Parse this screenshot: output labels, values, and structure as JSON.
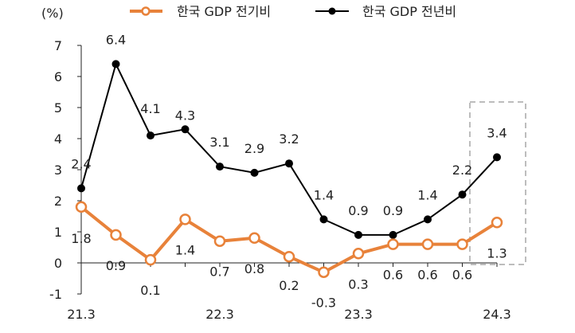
{
  "chart_data": {
    "type": "line",
    "unit_label": "(%)",
    "x": [
      "21.3",
      "",
      "",
      "",
      "22.3",
      "",
      "",
      "",
      "23.3",
      "",
      "",
      "",
      "24.3"
    ],
    "xtick_labels": [
      "21.3",
      "22.3",
      "23.3",
      "24.3"
    ],
    "ylim": [
      -1,
      7
    ],
    "yticks": [
      -1,
      0,
      1,
      2,
      3,
      4,
      5,
      6,
      7
    ],
    "highlight_last_point": true,
    "series": [
      {
        "name": "한국 GDP 전기비",
        "color": "#E8823A",
        "marker": "open-circle",
        "values": [
          1.8,
          0.9,
          0.1,
          1.4,
          0.7,
          0.8,
          0.2,
          -0.3,
          0.3,
          0.6,
          0.6,
          0.6,
          1.3
        ],
        "labels": [
          "1.8",
          "0.9",
          "0.1",
          "1.4",
          "0.7",
          "0.8",
          "0.2",
          "-0.3",
          "0.3",
          "0.6",
          "0.6",
          "0.6",
          "1.3"
        ]
      },
      {
        "name": "한국 GDP 전년비",
        "color": "#000000",
        "marker": "filled-circle",
        "values": [
          2.4,
          6.4,
          4.1,
          4.3,
          3.1,
          2.9,
          3.2,
          1.4,
          0.9,
          0.9,
          1.4,
          2.2,
          3.4
        ],
        "labels": [
          "2.4",
          "6.4",
          "4.1",
          "4.3",
          "3.1",
          "2.9",
          "3.2",
          "1.4",
          "0.9",
          "0.9",
          "1.4",
          "2.2",
          "3.4"
        ]
      }
    ]
  }
}
